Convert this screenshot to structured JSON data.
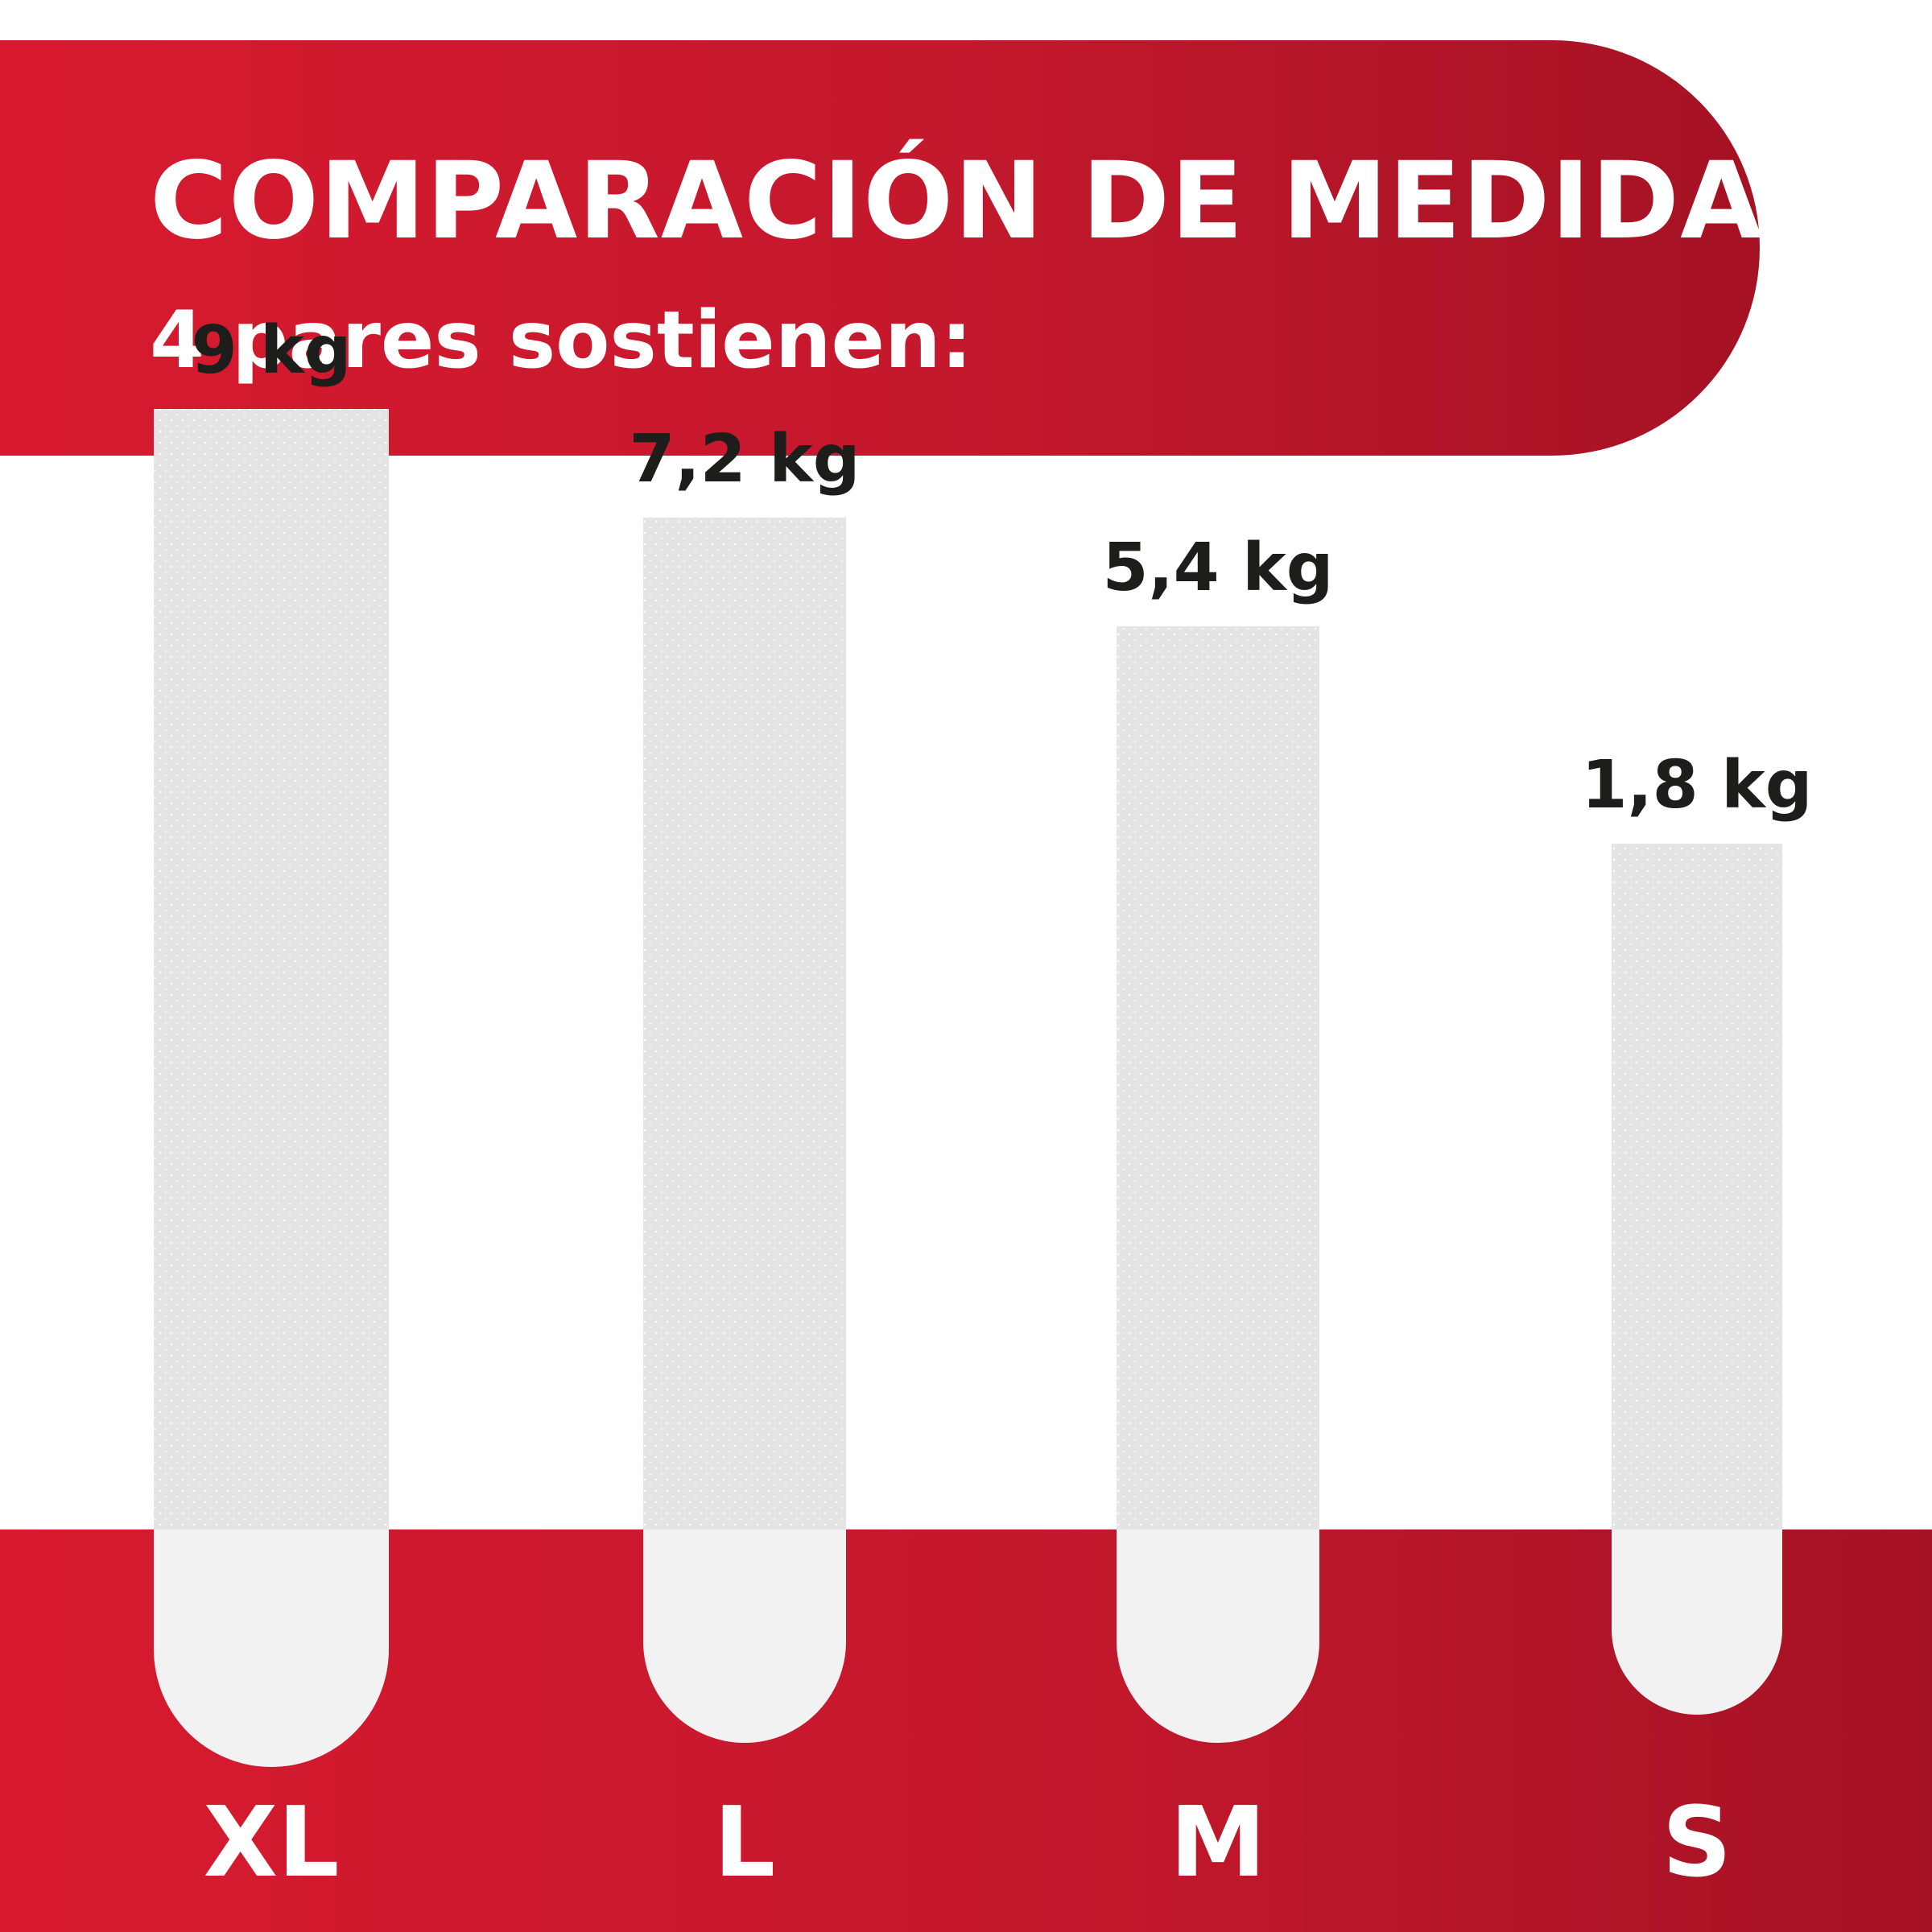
{
  "header": {
    "title": "COMPARACIÓN DE MEDIDAS",
    "subtitle": "4 pares sostienen:"
  },
  "colors": {
    "brand_red": "#c3182d",
    "brand_red_dark": "#a51224",
    "strip": "#e4e4e4",
    "strip_tab": "#f2f2f2",
    "value_text": "#1d1d1b"
  },
  "chart_data": {
    "type": "bar",
    "categories": [
      "XL",
      "L",
      "M",
      "S"
    ],
    "values": [
      9,
      7.2,
      5.4,
      1.8
    ],
    "value_labels": [
      "9 kg",
      "7,2 kg",
      "5,4 kg",
      "1,8 kg"
    ],
    "title": "COMPARACIÓN DE MEDIDAS",
    "subtitle": "4 pares sostienen:",
    "xlabel": "",
    "ylabel": "",
    "unit": "kg",
    "grid": false,
    "legend": "none"
  }
}
